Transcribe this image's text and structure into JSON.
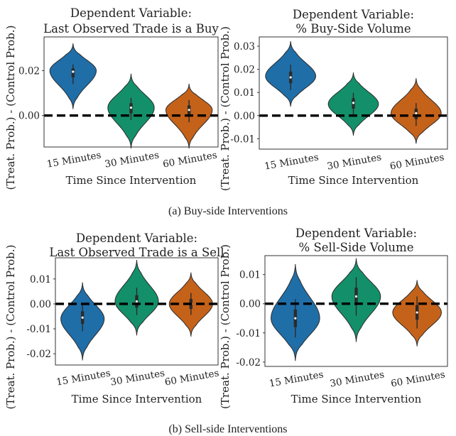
{
  "colors": {
    "c15": "#1f6ea8",
    "c30": "#13906a",
    "c60": "#c5621a"
  },
  "captions": {
    "a": "(a) Buy-side Interventions",
    "b": "(b) Sell-side Interventions"
  },
  "chart_data": [
    {
      "type": "violin",
      "title": [
        "Dependent Variable:",
        "Last Observed Trade is a Buy"
      ],
      "xlabel": "Time Since Intervention",
      "ylabel": "(Treat. Prob.) - (Control Prob.)",
      "categories": [
        "15 Minutes",
        "30 Minutes",
        "60 Minutes"
      ],
      "ylim": [
        -0.014,
        0.035
      ],
      "yticks": [
        0.0,
        0.02
      ],
      "ytick_labels": [
        "0.00",
        "0.02"
      ],
      "reference_line": 0,
      "series": [
        {
          "category": "15 Minutes",
          "min": 0.003,
          "max": 0.032,
          "q1": 0.017,
          "median": 0.0195,
          "q3": 0.021,
          "mode": 0.02,
          "width": 1.0
        },
        {
          "category": "30 Minutes",
          "min": -0.0145,
          "max": 0.0185,
          "q1": 0.001,
          "median": 0.0035,
          "q3": 0.0055,
          "mode": 0.0035,
          "width": 1.0
        },
        {
          "category": "60 Minutes",
          "min": -0.0145,
          "max": 0.014,
          "q1": 0.0,
          "median": 0.0025,
          "q3": 0.0045,
          "mode": 0.0025,
          "width": 1.0
        }
      ]
    },
    {
      "type": "violin",
      "title": [
        "Dependent Variable:",
        "% Buy-Side Volume"
      ],
      "xlabel": "Time Since Intervention",
      "ylabel": "(Treat. Prob.) - (Control Prob.)",
      "categories": [
        "15 Minutes",
        "30 Minutes",
        "60 Minutes"
      ],
      "ylim": [
        -0.0145,
        0.034
      ],
      "yticks": [
        -0.01,
        0.0,
        0.01,
        0.02,
        0.03
      ],
      "ytick_labels": [
        "-0.01",
        "0.00",
        "0.01",
        "0.02",
        "0.03"
      ],
      "reference_line": 0,
      "series": [
        {
          "category": "15 Minutes",
          "min": 0.004,
          "max": 0.032,
          "q1": 0.014,
          "median": 0.0165,
          "q3": 0.019,
          "mode": 0.017,
          "width": 1.0
        },
        {
          "category": "30 Minutes",
          "min": -0.0085,
          "max": 0.0185,
          "q1": 0.003,
          "median": 0.0055,
          "q3": 0.0075,
          "mode": 0.005,
          "width": 1.0
        },
        {
          "category": "60 Minutes",
          "min": -0.012,
          "max": 0.016,
          "q1": -0.0015,
          "median": 0.001,
          "q3": 0.003,
          "mode": 0.001,
          "width": 1.0
        }
      ]
    },
    {
      "type": "violin",
      "title": [
        "Dependent Variable:",
        "Last Observed Trade is a Sell"
      ],
      "xlabel": "Time Since Intervention",
      "ylabel": "(Treat. Prob.) - (Control Prob.)",
      "categories": [
        "15 Minutes",
        "30 Minutes",
        "60 Minutes"
      ],
      "ylim": [
        -0.0245,
        0.0185
      ],
      "yticks": [
        -0.02,
        -0.01,
        0.0,
        0.01
      ],
      "ytick_labels": [
        "-0.02",
        "-0.01",
        "0.00",
        "0.01"
      ],
      "reference_line": 0,
      "series": [
        {
          "category": "15 Minutes",
          "min": -0.0225,
          "max": 0.0085,
          "q1": -0.008,
          "median": -0.0055,
          "q3": -0.003,
          "mode": -0.006,
          "width": 1.0
        },
        {
          "category": "30 Minutes",
          "min": -0.0125,
          "max": 0.0175,
          "q1": -0.0015,
          "median": 0.001,
          "q3": 0.0035,
          "mode": 0.001,
          "width": 1.0
        },
        {
          "category": "60 Minutes",
          "min": -0.013,
          "max": 0.0125,
          "q1": -0.002,
          "median": 0.0,
          "q3": 0.002,
          "mode": 0.0,
          "width": 1.0
        }
      ]
    },
    {
      "type": "violin",
      "title": [
        "Dependent Variable:",
        "% Sell-Side Volume"
      ],
      "xlabel": "Time Since Intervention",
      "ylabel": "(Treat. Prob.) - (Control Prob.)",
      "categories": [
        "15 Minutes",
        "30 Minutes",
        "60 Minutes"
      ],
      "ylim": [
        -0.0215,
        0.0165
      ],
      "yticks": [
        -0.02,
        -0.01,
        0.0,
        0.01
      ],
      "ytick_labels": [
        "-0.02",
        "-0.01",
        "0.00",
        "0.01"
      ],
      "reference_line": 0,
      "series": [
        {
          "category": "15 Minutes",
          "min": -0.0195,
          "max": 0.0135,
          "q1": -0.008,
          "median": -0.005,
          "q3": -0.002,
          "mode": -0.005,
          "width": 1.0
        },
        {
          "category": "30 Minutes",
          "min": -0.013,
          "max": 0.0155,
          "q1": -0.0005,
          "median": 0.0025,
          "q3": 0.0055,
          "mode": 0.0025,
          "width": 1.0
        },
        {
          "category": "60 Minutes",
          "min": -0.0145,
          "max": 0.008,
          "q1": -0.0055,
          "median": -0.003,
          "q3": -0.0005,
          "mode": -0.003,
          "width": 1.0
        }
      ]
    }
  ]
}
